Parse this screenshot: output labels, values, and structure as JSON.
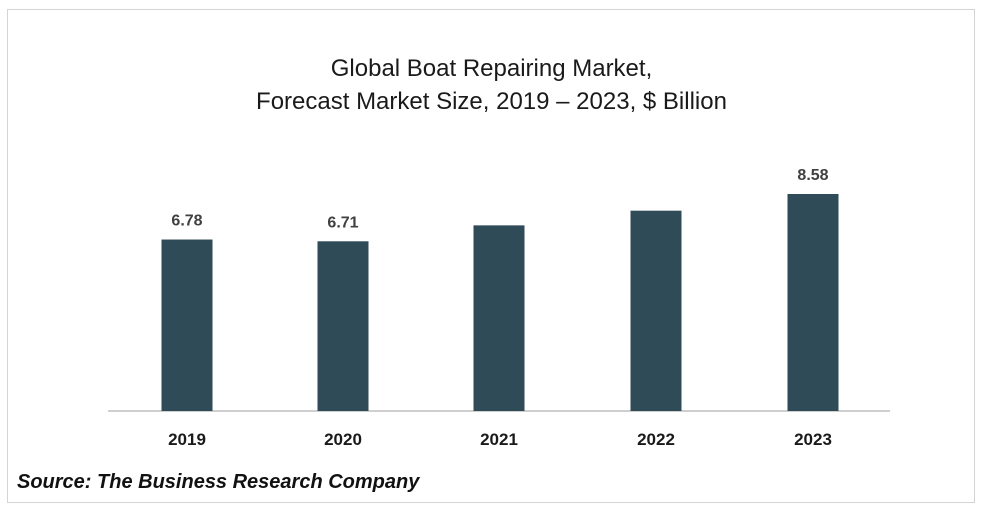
{
  "chart_data": {
    "type": "bar",
    "title_line1": "Global Boat Repairing Market,",
    "title_line2": "Forecast Market Size, 2019 – 2023, $ Billion",
    "categories": [
      "2019",
      "2020",
      "2021",
      "2022",
      "2023"
    ],
    "values": [
      6.78,
      6.71,
      7.34,
      7.92,
      8.58
    ],
    "labels": [
      "6.78",
      "6.71",
      "",
      "",
      "8.58"
    ],
    "xlabel": "",
    "ylabel": "",
    "ylim": [
      0,
      10
    ],
    "grid": false,
    "legend": "none",
    "bar_color": "#2f4b57",
    "axis_color": "#bfbfbf"
  },
  "source": "Source: The Business Research Company"
}
